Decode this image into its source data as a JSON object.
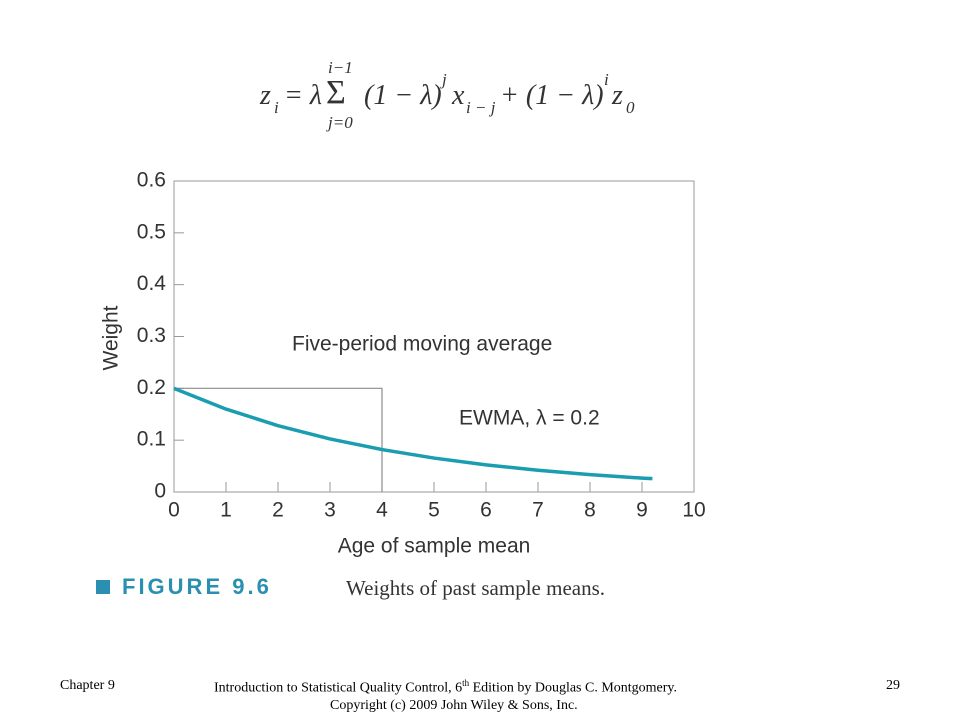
{
  "formula": [
    "z",
    "i",
    "= λ",
    "i−1",
    "Σ",
    "j=0",
    "(1 − λ)",
    "j",
    "x",
    "i − j",
    "+ (1 − λ)",
    "i",
    "z",
    "0"
  ],
  "chart_data": {
    "type": "line",
    "xlabel": "Age of sample mean",
    "ylabel": "Weight",
    "xlim": [
      0,
      10
    ],
    "ylim": [
      0,
      0.6
    ],
    "xticks": [
      0,
      1,
      2,
      3,
      4,
      5,
      6,
      7,
      8,
      9,
      10
    ],
    "yticks": [
      0,
      0.1,
      0.2,
      0.3,
      0.4,
      0.5,
      0.6
    ],
    "series": [
      {
        "name": "Five-period moving average",
        "color": "#8c8c8c",
        "x": [
          0,
          4,
          4
        ],
        "values": [
          0.2,
          0.2,
          0
        ]
      },
      {
        "name": "EWMA, λ = 0.2",
        "color": "#1a9db0",
        "x": [
          0,
          1,
          2,
          3,
          4,
          5,
          6,
          7,
          8,
          9,
          9.2
        ],
        "values": [
          0.2,
          0.16,
          0.128,
          0.1024,
          0.0819,
          0.0655,
          0.0524,
          0.0419,
          0.0336,
          0.0268,
          0.0257
        ]
      }
    ]
  },
  "figure": {
    "label": "FIGURE 9.6",
    "caption": "Weights of past sample means."
  },
  "footer": {
    "chapter": "Chapter 9",
    "book": "Introduction to Statistical Quality Control, 6",
    "book_sup": "th",
    "book_rest": " Edition by Douglas C. Montgomery.",
    "copyright": "Copyright (c) 2009  John Wiley & Sons, Inc.",
    "page": "29"
  }
}
